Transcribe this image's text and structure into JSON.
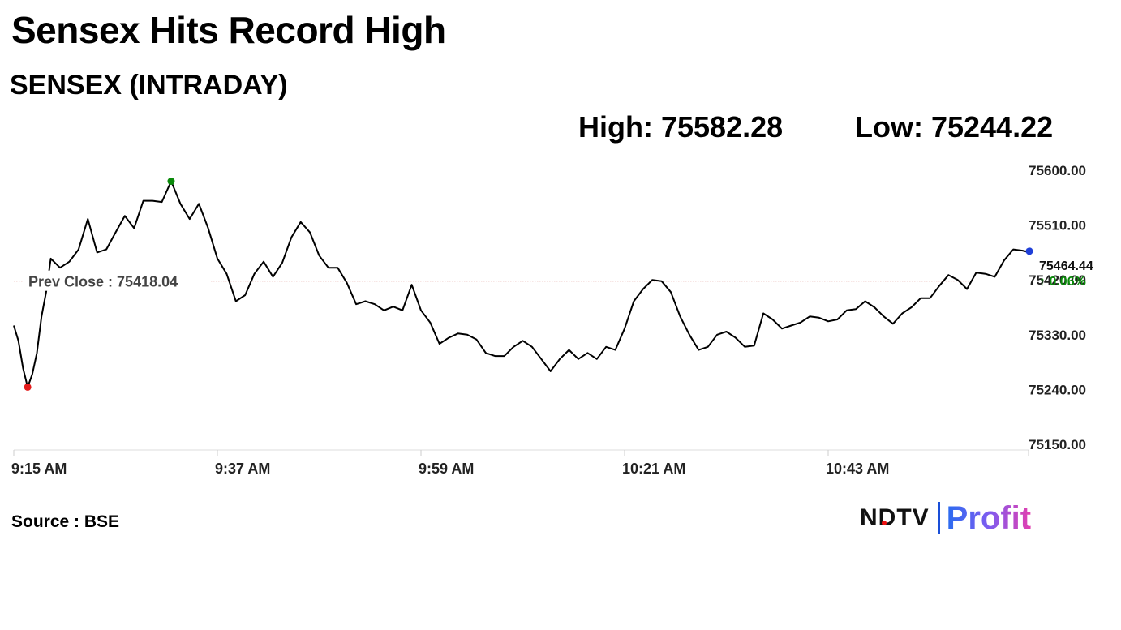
{
  "header": {
    "title": "Sensex Hits Record High",
    "subtitle": "SENSEX (INTRADAY)",
    "high_text": "High: 75582.28",
    "low_text": "Low: 75244.22"
  },
  "footer": {
    "source": "Source : BSE",
    "brand_ndtv": "NDTV",
    "brand_profit": "Profit"
  },
  "colors": {
    "line": "#000000",
    "prev_close_line": "#c0392b",
    "high_marker": "#0a8a0a",
    "low_marker": "#e31b1b",
    "last_marker": "#1f3fd8",
    "change_up": "#0a8a0a"
  },
  "chart_data": {
    "type": "line",
    "title": "SENSEX (INTRADAY)",
    "x_tick_labels": [
      "9:15 AM",
      "9:37 AM",
      "9:59 AM",
      "10:21 AM",
      "10:43 AM"
    ],
    "y_tick_labels": [
      "75600.00",
      "75510.00",
      "75420.00",
      "75330.00",
      "75240.00",
      "75150.00"
    ],
    "ylim": [
      75150,
      75600
    ],
    "x_range_minutes": [
      0,
      110
    ],
    "grid": false,
    "prev_close": 75418.04,
    "prev_close_label": "Prev Close : 75418.04",
    "high": 75582.28,
    "low": 75244.22,
    "last_value_label": "75464.44",
    "change_label": "↑ 0.06%",
    "series": [
      {
        "x": [
          0,
          0.5,
          1,
          1.5,
          2,
          2.5,
          3,
          3.5,
          4,
          5,
          6,
          7,
          8,
          9,
          10,
          11,
          12,
          13,
          14,
          15,
          16,
          17,
          18,
          19,
          20,
          21,
          22,
          23,
          24,
          25,
          26,
          27,
          28,
          29,
          30,
          31,
          32,
          33,
          34,
          35,
          36,
          37,
          38,
          39,
          40,
          41,
          42,
          43,
          44,
          45,
          46,
          47,
          48,
          49,
          50,
          51,
          52,
          53,
          54,
          55,
          56,
          57,
          58,
          59,
          60,
          61,
          62,
          63,
          64,
          65,
          66,
          67,
          68,
          69,
          70,
          71,
          72,
          73,
          74,
          75,
          76,
          77,
          78,
          79,
          80,
          81,
          82,
          83,
          84,
          85,
          86,
          87,
          88,
          89,
          90,
          91,
          92,
          93,
          94,
          95,
          96,
          97,
          98,
          99,
          100,
          101,
          102,
          103,
          104,
          105,
          106,
          107,
          108,
          109,
          110
        ],
        "y": [
          75345,
          75320,
          75275,
          75244,
          75265,
          75300,
          75360,
          75400,
          75455,
          75440,
          75450,
          75470,
          75520,
          75465,
          75470,
          75498,
          75525,
          75505,
          75550,
          75550,
          75548,
          75582,
          75545,
          75520,
          75545,
          75505,
          75455,
          75430,
          75385,
          75395,
          75430,
          75450,
          75425,
          75448,
          75490,
          75515,
          75498,
          75460,
          75440,
          75440,
          75415,
          75380,
          75385,
          75380,
          75370,
          75376,
          75370,
          75412,
          75370,
          75350,
          75315,
          75325,
          75332,
          75330,
          75322,
          75300,
          75295,
          75295,
          75310,
          75320,
          75310,
          75290,
          75270,
          75290,
          75305,
          75290,
          75300,
          75290,
          75310,
          75305,
          75340,
          75385,
          75405,
          75420,
          75418,
          75400,
          75360,
          75330,
          75305,
          75310,
          75330,
          75335,
          75325,
          75310,
          75312,
          75365,
          75355,
          75340,
          75345,
          75350,
          75360,
          75358,
          75352,
          75355,
          75370,
          75372,
          75385,
          75375,
          75360,
          75348,
          75365,
          75375,
          75390,
          75390,
          75410,
          75428,
          75420,
          75405,
          75432,
          75430,
          75425,
          75452,
          75470,
          75468,
          75464.44
        ]
      }
    ]
  }
}
